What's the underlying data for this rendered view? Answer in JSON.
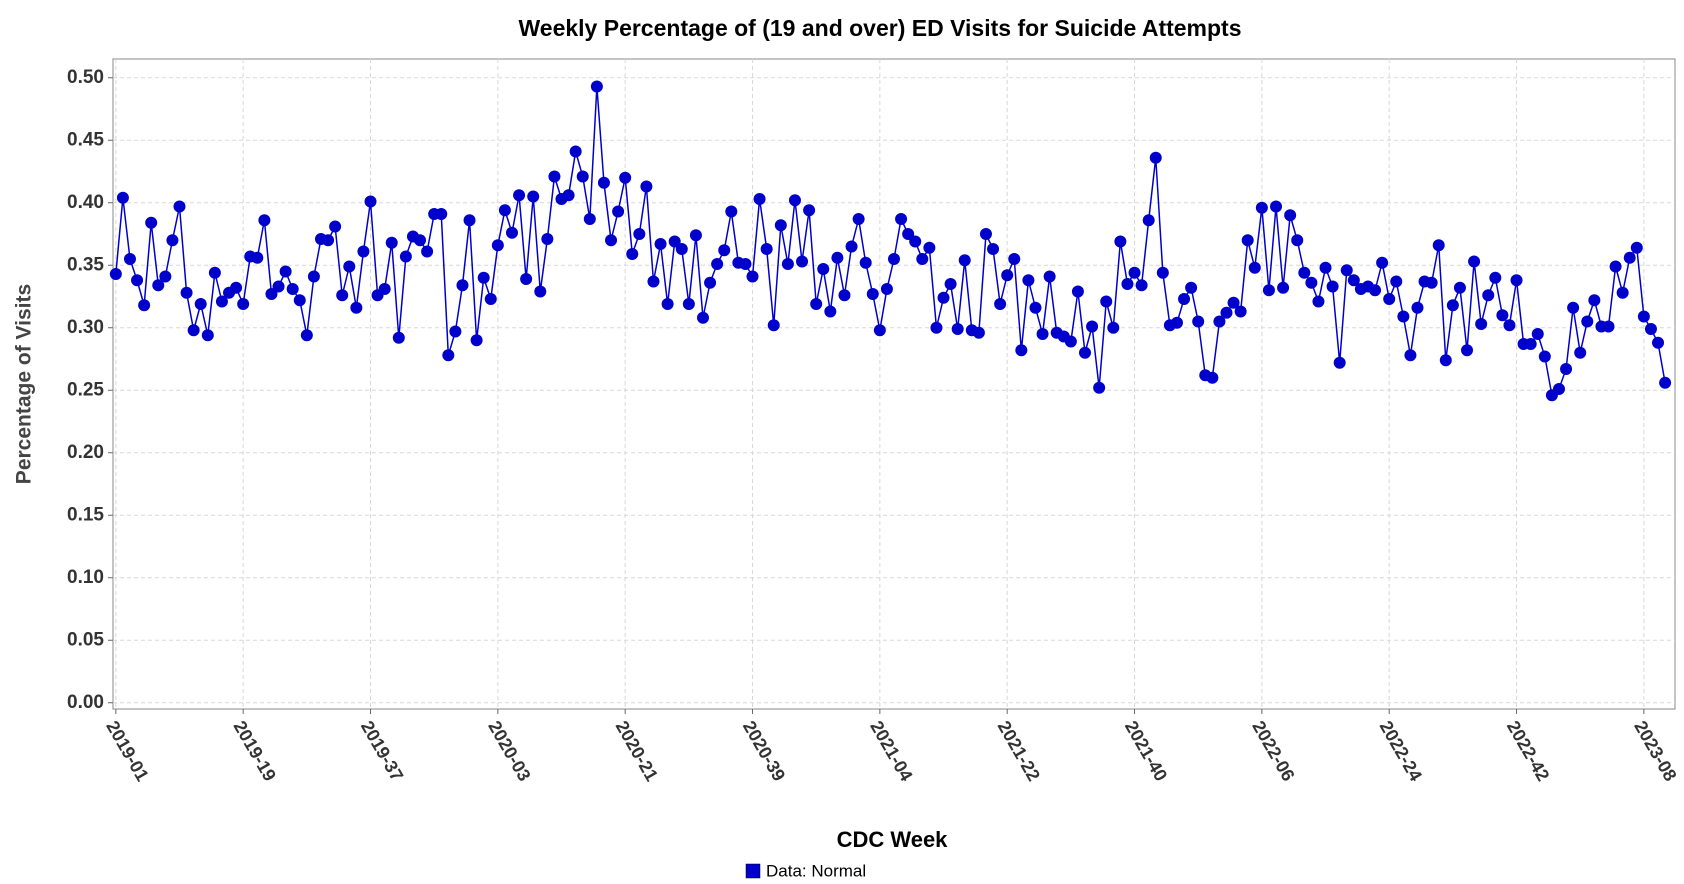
{
  "chart_data": {
    "type": "line",
    "title": "Weekly Percentage of (19 and over) ED Visits for Suicide Attempts",
    "x_label": "CDC Week",
    "y_label": "Percentage of Visits",
    "categories": [
      "2019-01",
      null,
      null,
      null,
      null,
      null,
      null,
      null,
      null,
      null,
      null,
      null,
      null,
      null,
      null,
      null,
      null,
      null,
      "2019-19",
      null,
      null,
      null,
      null,
      null,
      null,
      null,
      null,
      null,
      null,
      null,
      null,
      null,
      null,
      null,
      null,
      null,
      "2019-37",
      null,
      null,
      null,
      null,
      null,
      null,
      null,
      null,
      null,
      null,
      null,
      null,
      null,
      null,
      null,
      null,
      null,
      "2020-03",
      null,
      null,
      null,
      null,
      null,
      null,
      null,
      null,
      null,
      null,
      null,
      null,
      null,
      null,
      null,
      null,
      null,
      "2020-21",
      null,
      null,
      null,
      null,
      null,
      null,
      null,
      null,
      null,
      null,
      null,
      null,
      null,
      null,
      null,
      null,
      null,
      "2020-39",
      null,
      null,
      null,
      null,
      null,
      null,
      null,
      null,
      null,
      null,
      null,
      null,
      null,
      null,
      null,
      null,
      null,
      "2021-04",
      null,
      null,
      null,
      null,
      null,
      null,
      null,
      null,
      null,
      null,
      null,
      null,
      null,
      null,
      null,
      null,
      null,
      "2021-22",
      null,
      null,
      null,
      null,
      null,
      null,
      null,
      null,
      null,
      null,
      null,
      null,
      null,
      null,
      null,
      null,
      null,
      "2021-40",
      null,
      null,
      null,
      null,
      null,
      null,
      null,
      null,
      null,
      null,
      null,
      null,
      null,
      null,
      null,
      null,
      null,
      "2022-06",
      null,
      null,
      null,
      null,
      null,
      null,
      null,
      null,
      null,
      null,
      null,
      null,
      null,
      null,
      null,
      null,
      null,
      "2022-24",
      null,
      null,
      null,
      null,
      null,
      null,
      null,
      null,
      null,
      null,
      null,
      null,
      null,
      null,
      null,
      null,
      null,
      "2022-42",
      null,
      null,
      null,
      null,
      null,
      null,
      null,
      null,
      null,
      null,
      null,
      null,
      null,
      null,
      null,
      null,
      null,
      "2023-08",
      null,
      null,
      null
    ],
    "series": [
      {
        "name": "Data: Normal",
        "color": "#0000cc",
        "values": [
          0.343,
          0.404,
          0.355,
          0.338,
          0.318,
          0.384,
          0.334,
          0.341,
          0.37,
          0.397,
          0.328,
          0.298,
          0.319,
          0.294,
          0.344,
          0.321,
          0.328,
          0.332,
          0.319,
          0.357,
          0.356,
          0.386,
          0.327,
          0.333,
          0.345,
          0.331,
          0.322,
          0.294,
          0.341,
          0.371,
          0.37,
          0.381,
          0.326,
          0.349,
          0.316,
          0.361,
          0.401,
          0.326,
          0.331,
          0.368,
          0.292,
          0.357,
          0.373,
          0.37,
          0.361,
          0.391,
          0.391,
          0.278,
          0.297,
          0.334,
          0.386,
          0.29,
          0.34,
          0.323,
          0.366,
          0.394,
          0.376,
          0.406,
          0.339,
          0.405,
          0.329,
          0.371,
          0.421,
          0.403,
          0.406,
          0.441,
          0.421,
          0.387,
          0.493,
          0.416,
          0.37,
          0.393,
          0.42,
          0.359,
          0.375,
          0.413,
          0.337,
          0.367,
          0.319,
          0.369,
          0.363,
          0.319,
          0.374,
          0.308,
          0.336,
          0.351,
          0.362,
          0.393,
          0.352,
          0.351,
          0.341,
          0.403,
          0.363,
          0.302,
          0.382,
          0.351,
          0.402,
          0.353,
          0.394,
          0.319,
          0.347,
          0.313,
          0.356,
          0.326,
          0.365,
          0.387,
          0.352,
          0.327,
          0.298,
          0.331,
          0.355,
          0.387,
          0.375,
          0.369,
          0.355,
          0.364,
          0.3,
          0.324,
          0.335,
          0.299,
          0.354,
          0.298,
          0.296,
          0.375,
          0.363,
          0.319,
          0.342,
          0.355,
          0.282,
          0.338,
          0.316,
          0.295,
          0.341,
          0.296,
          0.293,
          0.289,
          0.329,
          0.28,
          0.301,
          0.252,
          0.321,
          0.3,
          0.369,
          0.335,
          0.344,
          0.334,
          0.386,
          0.436,
          0.344,
          0.302,
          0.304,
          0.323,
          0.332,
          0.305,
          0.262,
          0.26,
          0.305,
          0.312,
          0.32,
          0.313,
          0.37,
          0.348,
          0.396,
          0.33,
          0.397,
          0.332,
          0.39,
          0.37,
          0.344,
          0.336,
          0.321,
          0.348,
          0.333,
          0.272,
          0.346,
          0.338,
          0.331,
          0.333,
          0.33,
          0.352,
          0.323,
          0.337,
          0.309,
          0.278,
          0.316,
          0.337,
          0.336,
          0.366,
          0.274,
          0.318,
          0.332,
          0.282,
          0.353,
          0.303,
          0.326,
          0.34,
          0.31,
          0.302,
          0.338,
          0.287,
          0.287,
          0.295,
          0.277,
          0.246,
          0.251,
          0.267,
          0.316,
          0.28,
          0.305,
          0.322,
          0.301,
          0.301,
          0.349,
          0.328,
          0.356,
          0.364,
          0.309,
          0.299,
          0.288,
          0.256
        ]
      }
    ],
    "ylim": [
      -0.005,
      0.515
    ],
    "yticks": [
      {
        "value": 0,
        "label": "0.00"
      },
      {
        "value": 0.05,
        "label": "0.05"
      },
      {
        "value": 0.1,
        "label": "0.10"
      },
      {
        "value": 0.15,
        "label": "0.15"
      },
      {
        "value": 0.2,
        "label": "0.20"
      },
      {
        "value": 0.25,
        "label": "0.25"
      },
      {
        "value": 0.3,
        "label": "0.30"
      },
      {
        "value": 0.35,
        "label": "0.35"
      },
      {
        "value": 0.4,
        "label": "0.40"
      },
      {
        "value": 0.45,
        "label": "0.45"
      },
      {
        "value": 0.5,
        "label": "0.50"
      }
    ],
    "grid": true,
    "legend": "bottom"
  }
}
